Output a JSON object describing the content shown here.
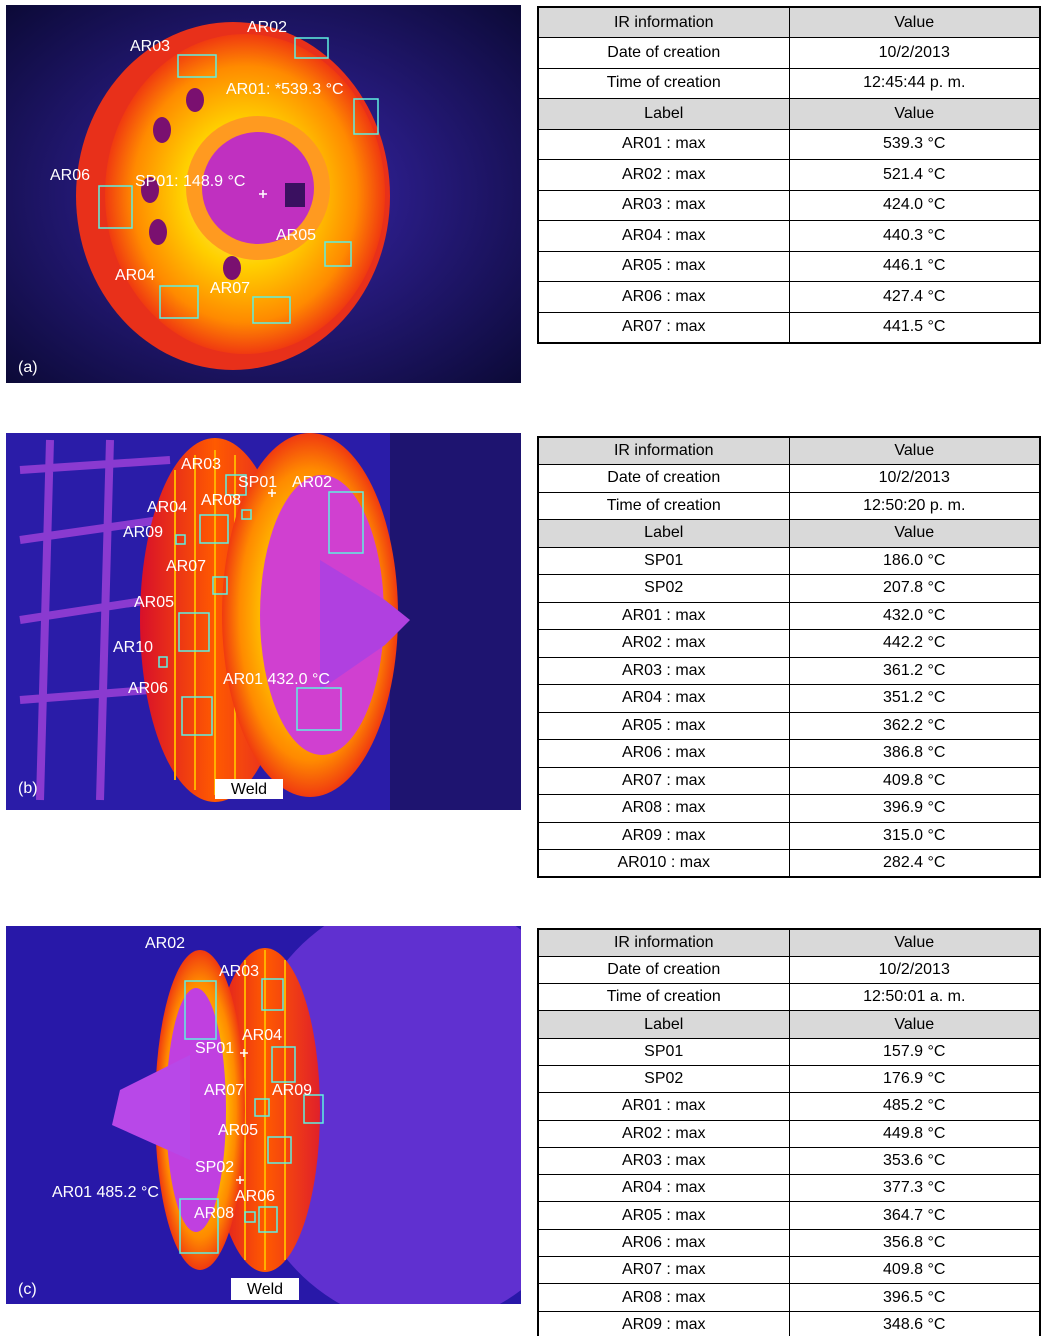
{
  "panels": [
    {
      "tag": "(a)",
      "overlays": [
        "AR03",
        "AR02",
        "AR01: *539.3 °C",
        "AR06",
        "SP01: 148.9 °C",
        "AR05",
        "AR04",
        "AR07"
      ],
      "table": {
        "info_head": [
          "IR information",
          "Value"
        ],
        "info": [
          [
            "Date of creation",
            "10/2/2013"
          ],
          [
            "Time of creation",
            "12:45:44 p. m."
          ]
        ],
        "label_head": [
          "Label",
          "Value"
        ],
        "rows": [
          [
            "AR01 : max",
            "539.3 °C"
          ],
          [
            "AR02 : max",
            "521.4 °C"
          ],
          [
            "AR03 : max",
            "424.0 °C"
          ],
          [
            "AR04 : max",
            "440.3 °C"
          ],
          [
            "AR05 : max",
            "446.1 °C"
          ],
          [
            "AR06 : max",
            "427.4 °C"
          ],
          [
            "AR07 : max",
            "441.5 °C"
          ]
        ]
      }
    },
    {
      "tag": "(b)",
      "weld": "Weld",
      "overlays": [
        "AR03",
        "SP01",
        "AR02",
        "AR04",
        "AR08",
        "AR09",
        "AR07",
        "AR05",
        "AR10",
        "AR06",
        "AR01 432.0 °C"
      ],
      "table": {
        "info_head": [
          "IR information",
          "Value"
        ],
        "info": [
          [
            "Date of creation",
            "10/2/2013"
          ],
          [
            "Time of creation",
            "12:50:20 p. m."
          ]
        ],
        "label_head": [
          "Label",
          "Value"
        ],
        "rows": [
          [
            "SP01",
            "186.0 °C"
          ],
          [
            "SP02",
            "207.8 °C"
          ],
          [
            "AR01 : max",
            "432.0 °C"
          ],
          [
            "AR02 : max",
            "442.2 °C"
          ],
          [
            "AR03 : max",
            "361.2 °C"
          ],
          [
            "AR04 : max",
            "351.2 °C"
          ],
          [
            "AR05 : max",
            "362.2 °C"
          ],
          [
            "AR06 : max",
            "386.8 °C"
          ],
          [
            "AR07 : max",
            "409.8 °C"
          ],
          [
            "AR08 : max",
            "396.9 °C"
          ],
          [
            "AR09 : max",
            "315.0 °C"
          ],
          [
            "AR010 : max",
            "282.4 °C"
          ]
        ]
      }
    },
    {
      "tag": "(c)",
      "weld": "Weld",
      "overlays": [
        "AR02",
        "AR03",
        "SP01",
        "AR04",
        "AR07",
        "AR09",
        "AR05",
        "SP02",
        "AR01 485.2 °C",
        "AR06",
        "AR08"
      ],
      "table": {
        "info_head": [
          "IR information",
          "Value"
        ],
        "info": [
          [
            "Date of creation",
            "10/2/2013"
          ],
          [
            "Time of creation",
            "12:50:01 a. m."
          ]
        ],
        "label_head": [
          "Label",
          "Value"
        ],
        "rows": [
          [
            "SP01",
            "157.9 °C"
          ],
          [
            "SP02",
            "176.9 °C"
          ],
          [
            "AR01 : max",
            "485.2 °C"
          ],
          [
            "AR02 : max",
            "449.8 °C"
          ],
          [
            "AR03 : max",
            "353.6 °C"
          ],
          [
            "AR04 : max",
            "377.3 °C"
          ],
          [
            "AR05 : max",
            "364.7 °C"
          ],
          [
            "AR06 : max",
            "356.8 °C"
          ],
          [
            "AR07 : max",
            "409.8 °C"
          ],
          [
            "AR08 : max",
            "396.5 °C"
          ],
          [
            "AR09 : max",
            "348.6 °C"
          ]
        ]
      }
    }
  ]
}
